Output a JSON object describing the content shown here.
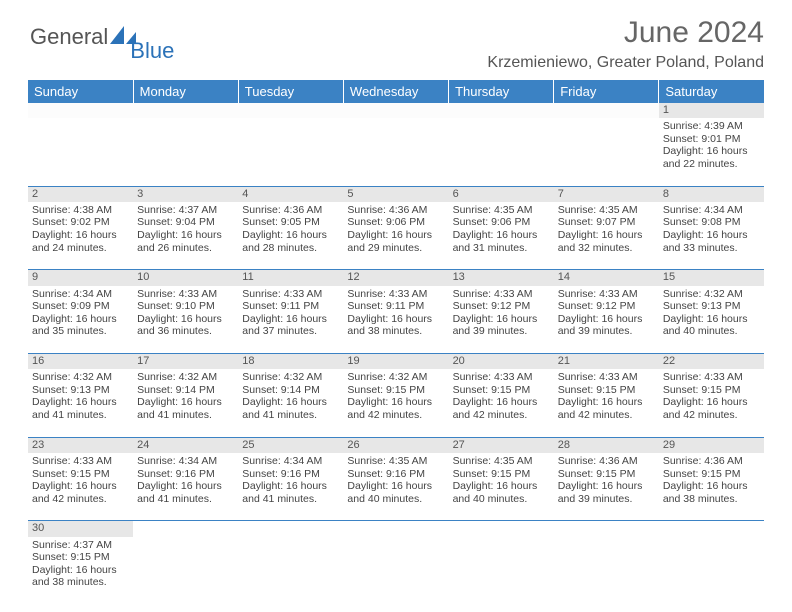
{
  "logo": {
    "part1": "General",
    "part2": "Blue"
  },
  "title": "June 2024",
  "subtitle": "Krzemieniewo, Greater Poland, Poland",
  "colors": {
    "header_bg": "#3b82c4",
    "header_fg": "#ffffff",
    "daynum_bg": "#e7e7e7",
    "row_border": "#3b82c4",
    "title_color": "#666666",
    "subtitle_color": "#555555",
    "text_color": "#444444",
    "logo_blue": "#2b72b8"
  },
  "typography": {
    "title_fontsize": 30,
    "subtitle_fontsize": 16,
    "header_fontsize": 13,
    "daynum_fontsize": 11,
    "cell_fontsize": 10.5
  },
  "columns": [
    "Sunday",
    "Monday",
    "Tuesday",
    "Wednesday",
    "Thursday",
    "Friday",
    "Saturday"
  ],
  "weeks": [
    [
      null,
      null,
      null,
      null,
      null,
      null,
      {
        "n": "1",
        "sr": "4:39 AM",
        "ss": "9:01 PM",
        "dh": "16",
        "dm": "22"
      }
    ],
    [
      {
        "n": "2",
        "sr": "4:38 AM",
        "ss": "9:02 PM",
        "dh": "16",
        "dm": "24"
      },
      {
        "n": "3",
        "sr": "4:37 AM",
        "ss": "9:04 PM",
        "dh": "16",
        "dm": "26"
      },
      {
        "n": "4",
        "sr": "4:36 AM",
        "ss": "9:05 PM",
        "dh": "16",
        "dm": "28"
      },
      {
        "n": "5",
        "sr": "4:36 AM",
        "ss": "9:06 PM",
        "dh": "16",
        "dm": "29"
      },
      {
        "n": "6",
        "sr": "4:35 AM",
        "ss": "9:06 PM",
        "dh": "16",
        "dm": "31"
      },
      {
        "n": "7",
        "sr": "4:35 AM",
        "ss": "9:07 PM",
        "dh": "16",
        "dm": "32"
      },
      {
        "n": "8",
        "sr": "4:34 AM",
        "ss": "9:08 PM",
        "dh": "16",
        "dm": "33"
      }
    ],
    [
      {
        "n": "9",
        "sr": "4:34 AM",
        "ss": "9:09 PM",
        "dh": "16",
        "dm": "35"
      },
      {
        "n": "10",
        "sr": "4:33 AM",
        "ss": "9:10 PM",
        "dh": "16",
        "dm": "36"
      },
      {
        "n": "11",
        "sr": "4:33 AM",
        "ss": "9:11 PM",
        "dh": "16",
        "dm": "37"
      },
      {
        "n": "12",
        "sr": "4:33 AM",
        "ss": "9:11 PM",
        "dh": "16",
        "dm": "38"
      },
      {
        "n": "13",
        "sr": "4:33 AM",
        "ss": "9:12 PM",
        "dh": "16",
        "dm": "39"
      },
      {
        "n": "14",
        "sr": "4:33 AM",
        "ss": "9:12 PM",
        "dh": "16",
        "dm": "39"
      },
      {
        "n": "15",
        "sr": "4:32 AM",
        "ss": "9:13 PM",
        "dh": "16",
        "dm": "40"
      }
    ],
    [
      {
        "n": "16",
        "sr": "4:32 AM",
        "ss": "9:13 PM",
        "dh": "16",
        "dm": "41"
      },
      {
        "n": "17",
        "sr": "4:32 AM",
        "ss": "9:14 PM",
        "dh": "16",
        "dm": "41"
      },
      {
        "n": "18",
        "sr": "4:32 AM",
        "ss": "9:14 PM",
        "dh": "16",
        "dm": "41"
      },
      {
        "n": "19",
        "sr": "4:32 AM",
        "ss": "9:15 PM",
        "dh": "16",
        "dm": "42"
      },
      {
        "n": "20",
        "sr": "4:33 AM",
        "ss": "9:15 PM",
        "dh": "16",
        "dm": "42"
      },
      {
        "n": "21",
        "sr": "4:33 AM",
        "ss": "9:15 PM",
        "dh": "16",
        "dm": "42"
      },
      {
        "n": "22",
        "sr": "4:33 AM",
        "ss": "9:15 PM",
        "dh": "16",
        "dm": "42"
      }
    ],
    [
      {
        "n": "23",
        "sr": "4:33 AM",
        "ss": "9:15 PM",
        "dh": "16",
        "dm": "42"
      },
      {
        "n": "24",
        "sr": "4:34 AM",
        "ss": "9:16 PM",
        "dh": "16",
        "dm": "41"
      },
      {
        "n": "25",
        "sr": "4:34 AM",
        "ss": "9:16 PM",
        "dh": "16",
        "dm": "41"
      },
      {
        "n": "26",
        "sr": "4:35 AM",
        "ss": "9:16 PM",
        "dh": "16",
        "dm": "40"
      },
      {
        "n": "27",
        "sr": "4:35 AM",
        "ss": "9:15 PM",
        "dh": "16",
        "dm": "40"
      },
      {
        "n": "28",
        "sr": "4:36 AM",
        "ss": "9:15 PM",
        "dh": "16",
        "dm": "39"
      },
      {
        "n": "29",
        "sr": "4:36 AM",
        "ss": "9:15 PM",
        "dh": "16",
        "dm": "38"
      }
    ],
    [
      {
        "n": "30",
        "sr": "4:37 AM",
        "ss": "9:15 PM",
        "dh": "16",
        "dm": "38"
      },
      null,
      null,
      null,
      null,
      null,
      null
    ]
  ],
  "labels": {
    "sunrise": "Sunrise:",
    "sunset": "Sunset:",
    "daylight_prefix": "Daylight:",
    "hours_word": "hours",
    "and_word": "and",
    "minutes_word": "minutes."
  }
}
